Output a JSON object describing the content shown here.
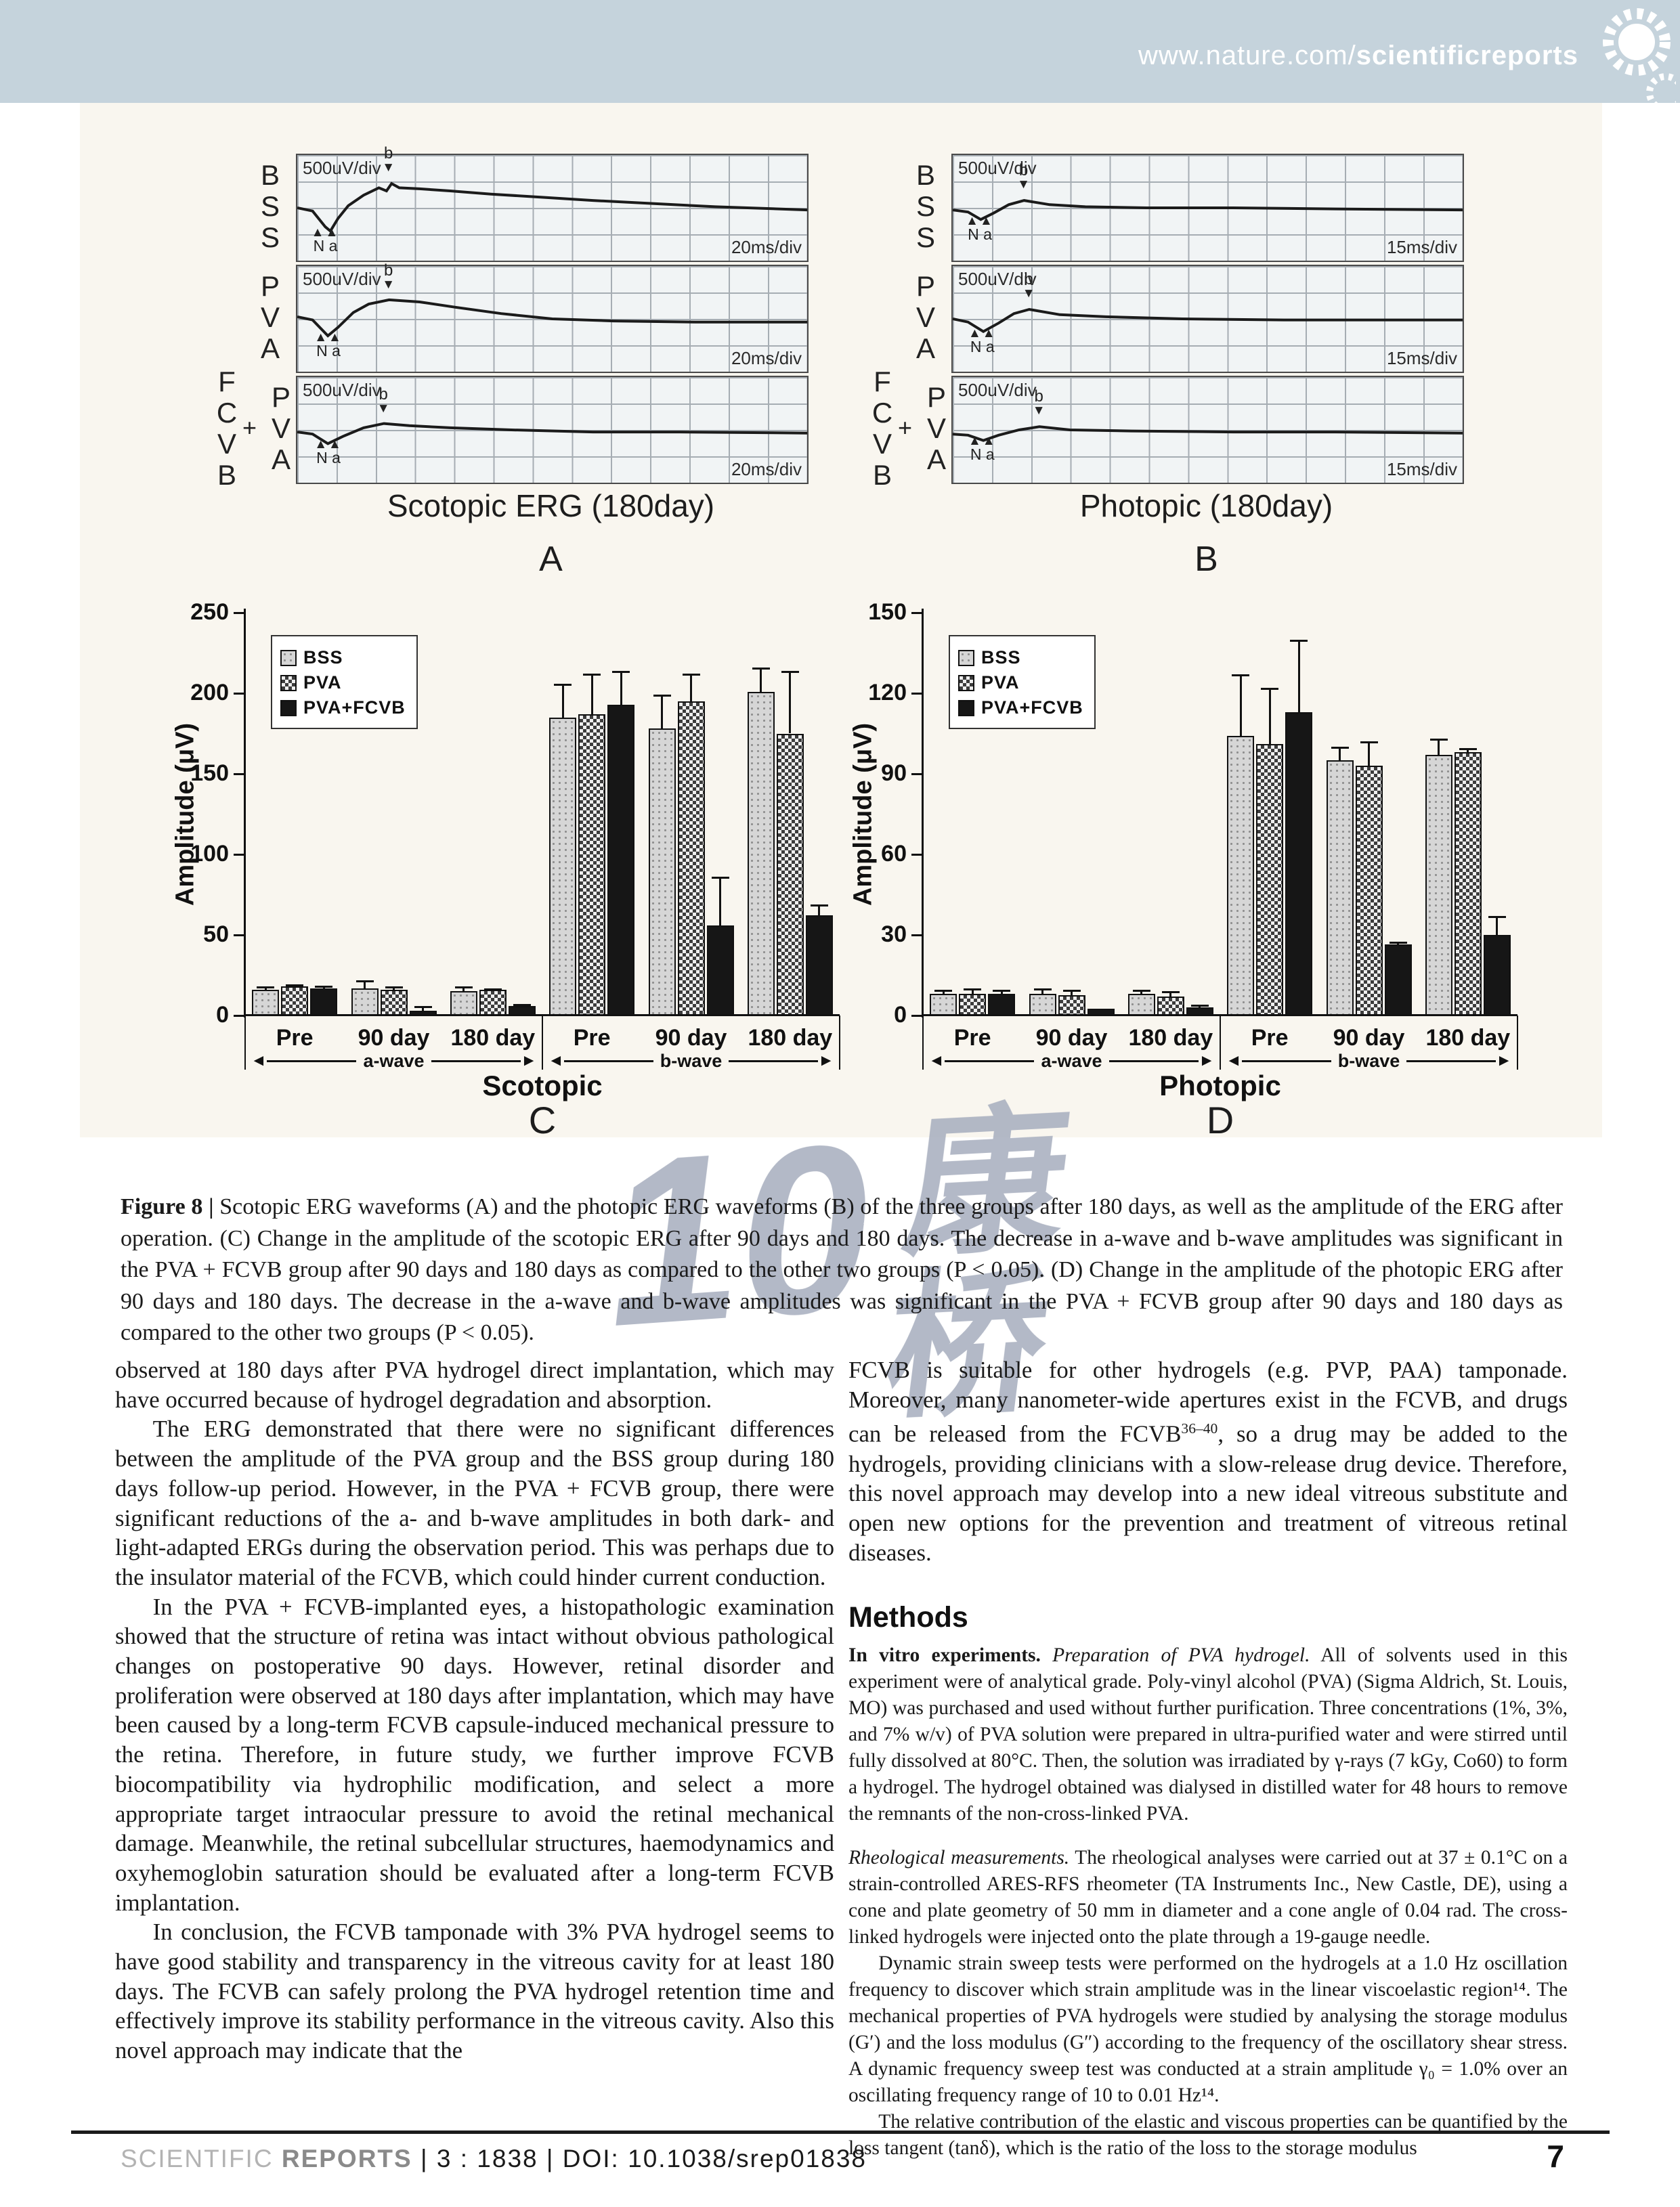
{
  "header": {
    "url_light": "www.nature.com/",
    "url_bold": "scientificreports"
  },
  "figure": {
    "vdiv": "500uV/div",
    "marker_a": "N a",
    "marker_b": "b",
    "panels": [
      {
        "id": "A",
        "bottom_label": "Scotopic ERG (180day)",
        "letter": "A",
        "hdiv": "20ms/div",
        "rows": [
          {
            "stacks": [
              "BSS"
            ],
            "a": [
              0.062,
              0.74
            ],
            "b": [
              0.185,
              0.27
            ],
            "trace": [
              [
                0,
                0.5
              ],
              [
                0.03,
                0.53
              ],
              [
                0.055,
                0.68
              ],
              [
                0.065,
                0.72
              ],
              [
                0.08,
                0.6
              ],
              [
                0.1,
                0.48
              ],
              [
                0.13,
                0.38
              ],
              [
                0.16,
                0.31
              ],
              [
                0.175,
                0.34
              ],
              [
                0.185,
                0.27
              ],
              [
                0.2,
                0.31
              ],
              [
                0.24,
                0.32
              ],
              [
                0.3,
                0.34
              ],
              [
                0.38,
                0.37
              ],
              [
                0.48,
                0.4
              ],
              [
                0.58,
                0.43
              ],
              [
                0.7,
                0.46
              ],
              [
                0.82,
                0.49
              ],
              [
                1,
                0.52
              ]
            ]
          },
          {
            "stacks": [
              "PVA"
            ],
            "a": [
              0.068,
              0.68
            ],
            "b": [
              0.185,
              0.33
            ],
            "trace": [
              [
                0,
                0.48
              ],
              [
                0.03,
                0.51
              ],
              [
                0.06,
                0.66
              ],
              [
                0.08,
                0.58
              ],
              [
                0.11,
                0.44
              ],
              [
                0.14,
                0.36
              ],
              [
                0.18,
                0.32
              ],
              [
                0.24,
                0.34
              ],
              [
                0.31,
                0.39
              ],
              [
                0.4,
                0.45
              ],
              [
                0.5,
                0.5
              ],
              [
                0.62,
                0.52
              ],
              [
                0.78,
                0.53
              ],
              [
                1,
                0.53
              ]
            ]
          },
          {
            "stacks": [
              "FCVB",
              "+",
              "PVA"
            ],
            "a": [
              0.068,
              0.64
            ],
            "b": [
              0.175,
              0.45
            ],
            "trace": [
              [
                0,
                0.52
              ],
              [
                0.03,
                0.54
              ],
              [
                0.06,
                0.63
              ],
              [
                0.09,
                0.56
              ],
              [
                0.13,
                0.48
              ],
              [
                0.17,
                0.44
              ],
              [
                0.22,
                0.46
              ],
              [
                0.3,
                0.48
              ],
              [
                0.42,
                0.5
              ],
              [
                0.58,
                0.52
              ],
              [
                0.75,
                0.52
              ],
              [
                1,
                0.53
              ]
            ]
          }
        ]
      },
      {
        "id": "B",
        "bottom_label": "Photopic (180day)",
        "letter": "B",
        "hdiv": "15ms/div",
        "rows": [
          {
            "stacks": [
              "BSS"
            ],
            "a": [
              0.06,
              0.63
            ],
            "b": [
              0.145,
              0.43
            ],
            "trace": [
              [
                0,
                0.52
              ],
              [
                0.03,
                0.54
              ],
              [
                0.055,
                0.61
              ],
              [
                0.08,
                0.55
              ],
              [
                0.11,
                0.47
              ],
              [
                0.14,
                0.43
              ],
              [
                0.19,
                0.47
              ],
              [
                0.26,
                0.49
              ],
              [
                0.38,
                0.5
              ],
              [
                0.55,
                0.5
              ],
              [
                0.75,
                0.51
              ],
              [
                1,
                0.52
              ]
            ]
          },
          {
            "stacks": [
              "PVA"
            ],
            "a": [
              0.065,
              0.64
            ],
            "b": [
              0.155,
              0.41
            ],
            "trace": [
              [
                0,
                0.5
              ],
              [
                0.03,
                0.53
              ],
              [
                0.06,
                0.62
              ],
              [
                0.09,
                0.54
              ],
              [
                0.12,
                0.45
              ],
              [
                0.15,
                0.41
              ],
              [
                0.21,
                0.46
              ],
              [
                0.3,
                0.48
              ],
              [
                0.45,
                0.5
              ],
              [
                0.65,
                0.51
              ],
              [
                1,
                0.51
              ]
            ]
          },
          {
            "stacks": [
              "FCVB",
              "+",
              "PVA"
            ],
            "a": [
              0.065,
              0.61
            ],
            "b": [
              0.175,
              0.47
            ],
            "trace": [
              [
                0,
                0.54
              ],
              [
                0.03,
                0.55
              ],
              [
                0.06,
                0.6
              ],
              [
                0.09,
                0.55
              ],
              [
                0.13,
                0.5
              ],
              [
                0.17,
                0.47
              ],
              [
                0.23,
                0.5
              ],
              [
                0.35,
                0.51
              ],
              [
                0.55,
                0.52
              ],
              [
                0.75,
                0.52
              ],
              [
                1,
                0.53
              ]
            ]
          }
        ]
      }
    ]
  },
  "chart_data": [
    {
      "id": "C",
      "type": "bar",
      "title": "Scotopic",
      "panel_letter": "C",
      "ylabel": "Amplitude (μV)",
      "ylim": [
        0,
        250
      ],
      "yticks": [
        0,
        50,
        100,
        150,
        200,
        250
      ],
      "categories": [
        "Pre",
        "90 day",
        "180 day",
        "Pre",
        "90 day",
        "180 day"
      ],
      "group_labels": [
        "a-wave",
        "b-wave"
      ],
      "legend": [
        "BSS",
        "PVA",
        "PVA+FCVB"
      ],
      "legend_position": "upper-left",
      "grid": false,
      "series": [
        {
          "name": "BSS",
          "values": [
            16,
            17,
            15,
            185,
            178,
            201
          ],
          "errors": [
            2,
            5,
            3,
            21,
            21,
            15
          ]
        },
        {
          "name": "PVA",
          "values": [
            18,
            16,
            16,
            187,
            195,
            175
          ],
          "errors": [
            1.5,
            2,
            1,
            25,
            17,
            39
          ]
        },
        {
          "name": "PVA+FCVB",
          "values": [
            17,
            3,
            6,
            193,
            56,
            62
          ],
          "errors": [
            1.5,
            3,
            1,
            21,
            30,
            7
          ]
        }
      ]
    },
    {
      "id": "D",
      "type": "bar",
      "title": "Photopic",
      "panel_letter": "D",
      "ylabel": "Amplitude (μV)",
      "ylim": [
        0,
        150
      ],
      "yticks": [
        0,
        30,
        60,
        90,
        120,
        150
      ],
      "categories": [
        "Pre",
        "90 day",
        "180 day",
        "Pre",
        "90 day",
        "180 day"
      ],
      "group_labels": [
        "a-wave",
        "b-wave"
      ],
      "legend": [
        "BSS",
        "PVA",
        "PVA+FCVB"
      ],
      "legend_position": "upper-left",
      "grid": false,
      "series": [
        {
          "name": "BSS",
          "values": [
            8,
            8,
            8,
            104,
            95,
            97
          ],
          "errors": [
            1.5,
            2,
            1.5,
            23,
            5,
            6
          ]
        },
        {
          "name": "PVA",
          "values": [
            8,
            7.5,
            7,
            101,
            93,
            98
          ],
          "errors": [
            2,
            2,
            2,
            21,
            9,
            1.5
          ]
        },
        {
          "name": "PVA+FCVB",
          "values": [
            8,
            2.5,
            3,
            113,
            26.5,
            30
          ],
          "errors": [
            1.5,
            0,
            1,
            27,
            1,
            7
          ]
        }
      ]
    }
  ],
  "watermark": {
    "mark": "10",
    "chars": "康桥"
  },
  "caption": {
    "label": "Figure 8 |",
    "text": " Scotopic ERG waveforms (A) and the photopic ERG waveforms (B) of the three groups after 180 days, as well as the amplitude of the ERG after operation. (C) Change in the amplitude of the scotopic ERG after 90 days and 180 days. The decrease in a-wave and b-wave amplitudes was significant in the PVA + FCVB group after 90 days and 180 days as compared to the other two groups (P < 0.05). (D) Change in the amplitude of the photopic ERG after 90 days and 180 days. The decrease in the a-wave and b-wave amplitudes was significant in the PVA + FCVB group after 90 days and 180 days as compared to the other two groups (P < 0.05)."
  },
  "body": {
    "left": [
      "observed at 180 days after PVA hydrogel direct implantation, which may have occurred because of hydrogel degradation and absorption.",
      "The ERG demonstrated that there were no significant differences between the amplitude of the PVA group and the BSS group during 180 days follow-up period. However, in the PVA + FCVB group, there were significant reductions of the a- and b-wave amplitudes in both dark- and light-adapted ERGs during the observation period. This was perhaps due to the insulator material of the FCVB, which could hinder current conduction.",
      "In the PVA + FCVB-implanted eyes, a histopathologic examination showed that the structure of retina was intact without obvious pathological changes on postoperative 90 days. However, retinal disorder and proliferation were observed at 180 days after implantation, which may have been caused by a long-term FCVB capsule-induced mechanical pressure to the retina. Therefore, in future study, we further improve FCVB biocompatibility via hydrophilic modification, and select a more appropriate target intraocular pressure to avoid the retinal mechanical damage. Meanwhile, the retinal subcellular structures, haemodynamics and oxyhemoglobin saturation should be evaluated after a long-term FCVB implantation.",
      "In conclusion, the FCVB tamponade with 3% PVA hydrogel seems to have good stability and transparency in the vitreous cavity for at least 180 days. The FCVB can safely prolong the PVA hydrogel retention time and effectively improve its stability performance in the vitreous cavity. Also this novel approach may indicate that the"
    ],
    "right_intro": {
      "pre": "FCVB is suitable for other hydrogels (e.g. PVP, PAA) tamponade. Moreover, many nanometer-wide apertures exist in the FCVB, and drugs can be released from the FCVB",
      "sup": "36–40",
      "post": ", so a drug may be added to the hydrogels, providing clinicians with a slow-release drug device. Therefore, this novel approach may develop into a new ideal vitreous substitute and open new options for the prevention and treatment of vitreous retinal diseases."
    },
    "methods_heading": "Methods",
    "methods": [
      {
        "bold": "In vitro experiments.",
        "italic": " Preparation of PVA hydrogel.",
        "text": " All of solvents used in this experiment were of analytical grade. Poly-vinyl alcohol (PVA) (Sigma Aldrich, St. Louis, MO) was purchased and used without further purification. Three concentrations (1%, 3%, and 7% w/v) of PVA solution were prepared in ultra-purified water and were stirred until fully dissolved at 80°C. Then, the solution was irradiated by γ-rays (7 kGy, Co60) to form a hydrogel. The hydrogel obtained was dialysed in distilled water for 48 hours to remove the remnants of the non-cross-linked PVA.",
        "gap": false,
        "indent": false
      },
      {
        "bold": "",
        "italic": "Rheological measurements.",
        "text": " The rheological analyses were carried out at 37 ± 0.1°C on a strain-controlled ARES-RFS rheometer (TA Instruments Inc., New Castle, DE), using a cone and plate geometry of 50 mm in diameter and a cone angle of 0.04 rad. The cross-linked hydrogels were injected onto the plate through a 19-gauge needle.",
        "gap": true,
        "indent": false
      },
      {
        "bold": "",
        "italic": "",
        "text": "Dynamic strain sweep tests were performed on the hydrogels at a 1.0 Hz oscillation frequency to discover which strain amplitude was in the linear viscoelastic region¹⁴. The mechanical properties of PVA hydrogels were studied by analysing the storage modulus (G′) and the loss modulus (G″) according to the frequency of the oscillatory shear stress. A dynamic frequency sweep test was conducted at a strain amplitude γ₀ = 1.0% over an oscillating frequency range of 10 to 0.01 Hz¹⁴.",
        "gap": false,
        "indent": true
      },
      {
        "bold": "",
        "italic": "",
        "text": "The relative contribution of the elastic and viscous properties can be quantified by the loss tangent (tanδ), which is the ratio of the loss to the storage modulus",
        "gap": false,
        "indent": true
      }
    ]
  },
  "footer": {
    "brand_light": "SCIENTIFIC",
    "brand_bold": "REPORTS",
    "meta": " | 3 : 1838 | DOI: 10.1038/srep01838",
    "page_number": "7"
  }
}
